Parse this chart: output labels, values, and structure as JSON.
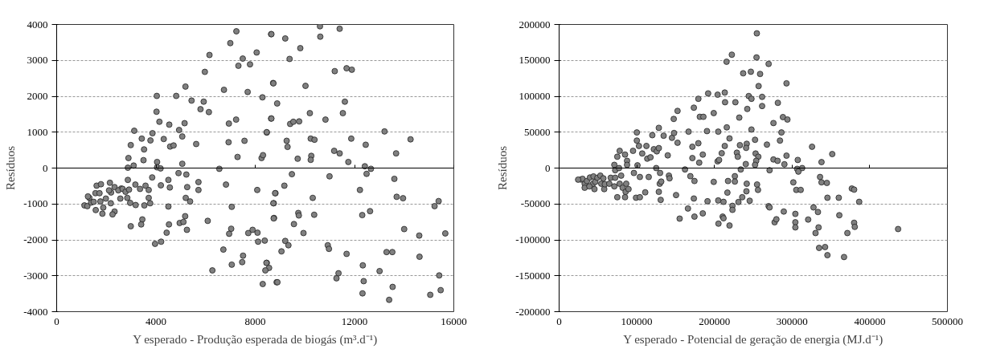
{
  "chart_data": [
    {
      "type": "scatter",
      "xlabel": "Y esperado - Produção esperada de biogás (m³.d⁻¹)",
      "ylabel": "Resíduos",
      "xlim": [
        0,
        16000
      ],
      "ylim": [
        -4000,
        4000
      ],
      "xticks": [
        0,
        4000,
        8000,
        12000,
        16000
      ],
      "yticks": [
        -4000,
        -3000,
        -2000,
        -1000,
        0,
        1000,
        2000,
        3000,
        4000
      ],
      "grid": "y",
      "marker": "circle",
      "series": [
        {
          "color": "#808080",
          "x": [
            7240,
            6995,
            6156,
            7497,
            7322,
            7789,
            8057,
            8640,
            5970,
            5189,
            6740,
            7695,
            8722,
            4034,
            4815,
            5434,
            5923,
            5795,
            6133,
            8290,
            4023,
            4139,
            4536,
            5154,
            4932,
            5060,
            6938,
            7229,
            8640,
            3125,
            3428,
            3778,
            3860,
            4314,
            2985,
            3521,
            4571,
            4711,
            5620,
            8465,
            6926,
            7567,
            2892,
            3101,
            3498,
            4046,
            2868,
            4046,
            4186,
            5060,
            7287,
            8255,
            8313,
            6553,
            4909,
            5224,
            3848,
            2868,
            3171,
            3358,
            3580,
            3708,
            4501,
            4559,
            4198,
            5713,
            5713,
            6821,
            8080,
            8815,
            5259,
            5200,
            5375,
            2600,
            2192,
            2565,
            2845,
            3183,
            3533,
            3766,
            3708,
            2962,
            4501,
            7054,
            8745,
            6086,
            8757,
            3451,
            3405,
            2985,
            4524,
            4955,
            5107,
            5177,
            5247,
            4431,
            4209,
            3964,
            7031,
            6949,
            7719,
            7894,
            8092,
            8115,
            8383,
            6716,
            7509,
            7474,
            7054,
            6273,
            8465,
            8558,
            8407,
            8302,
            8862,
            1120,
            1236,
            1318,
            1388,
            1562,
            1609,
            1784,
            1574,
            1842,
            1761,
            1982,
            1877,
            2180,
            2332,
            2250,
            2145,
            2110,
            2332,
            2484,
            2658,
            2775,
            2915,
            1260,
            1492,
            1726,
            8650,
            9209,
            10608,
            10620,
            11401,
            9815,
            9384,
            11203,
            11681,
            11891,
            8731,
            10025,
            8883,
            11611,
            8650,
            9407,
            9536,
            9769,
            10200,
            10830,
            11530,
            8463,
            9267,
            9302,
            10235,
            10387,
            11868,
            13209,
            14258,
            12451,
            13675,
            11180,
            11401,
            9710,
            10258,
            10235,
            11751,
            12416,
            12661,
            12486,
            9477,
            9174,
            8801,
            8731,
            10993,
            12218,
            13605,
            10317,
            13698,
            13955,
            9734,
            9757,
            10375,
            8743,
            9559,
            9944,
            12311,
            12626,
            15226,
            15389,
            14001,
            14608,
            15657,
            9209,
            9337,
            9057,
            10923,
            10970,
            11681,
            13290,
            13523,
            14619,
            12334,
            13010,
            11355,
            11273,
            12369,
            12322,
            13395,
            13535,
            8894,
            8451,
            15051,
            15471,
            15412
          ],
          "values": [
            3810,
            3480,
            3150,
            3050,
            2850,
            2890,
            3220,
            3730,
            2680,
            2270,
            2180,
            2120,
            2370,
            2010,
            2010,
            1880,
            1850,
            1640,
            1560,
            1970,
            1570,
            1290,
            1210,
            1250,
            1060,
            880,
            1240,
            1350,
            1380,
            1040,
            820,
            770,
            970,
            810,
            640,
            520,
            600,
            630,
            670,
            990,
            720,
            760,
            280,
            70,
            220,
            170,
            10,
            20,
            -10,
            120,
            310,
            280,
            360,
            -20,
            -140,
            -180,
            -260,
            -330,
            -460,
            -580,
            -490,
            -610,
            -330,
            -540,
            -480,
            -390,
            -610,
            -460,
            -610,
            -700,
            -530,
            -830,
            -930,
            -570,
            -680,
            -850,
            -830,
            -1030,
            -1040,
            -980,
            -830,
            -970,
            -1070,
            -1080,
            -980,
            -1470,
            -1390,
            -1430,
            -1570,
            -1620,
            -1570,
            -1530,
            -1500,
            -1340,
            -1720,
            -1800,
            -2050,
            -2110,
            -1690,
            -1830,
            -1810,
            -1720,
            -1800,
            -2050,
            -2020,
            -2270,
            -2440,
            -2620,
            -2690,
            -2850,
            -2640,
            -2780,
            -2850,
            -3230,
            -3180,
            -1040,
            -1060,
            -830,
            -960,
            -700,
            -490,
            -450,
            -1170,
            -1270,
            -930,
            -850,
            -1100,
            -980,
            -1210,
            -1290,
            -410,
            -620,
            -530,
            -620,
            -580,
            -660,
            -600,
            -790,
            -940,
            -700,
            3730,
            3610,
            3950,
            3660,
            3880,
            3340,
            3040,
            2700,
            2780,
            2740,
            2360,
            2290,
            1800,
            1850,
            1380,
            1230,
            1290,
            1300,
            1530,
            1350,
            1530,
            1000,
            760,
            590,
            820,
            790,
            820,
            1020,
            800,
            650,
            410,
            480,
            410,
            260,
            340,
            230,
            170,
            50,
            -20,
            -160,
            -170,
            -490,
            -700,
            -980,
            -230,
            -610,
            -300,
            -830,
            -800,
            -840,
            -1250,
            -1320,
            -1300,
            -1400,
            -1560,
            -1810,
            -1310,
            -1200,
            -1060,
            -920,
            -1700,
            -1880,
            -1820,
            -2030,
            -2150,
            -2320,
            -2150,
            -2250,
            -2390,
            -2340,
            -2340,
            -2470,
            -2710,
            -2870,
            -2930,
            -3070,
            -3150,
            -3490,
            -3670,
            -3310,
            -3180,
            -2640,
            -3530,
            -3400,
            -2990
          ]
        }
      ]
    },
    {
      "type": "scatter",
      "xlabel": "Y esperado - Potencial de geração de energia (MJ.d⁻¹)",
      "ylabel": "Resíduos",
      "xlim": [
        0,
        500000
      ],
      "ylim": [
        -200000,
        200000
      ],
      "xticks": [
        0,
        100000,
        200000,
        300000,
        400000,
        500000
      ],
      "yticks": [
        -200000,
        -150000,
        -100000,
        -50000,
        0,
        50000,
        100000,
        150000,
        200000
      ],
      "grid": "y",
      "marker": "circle",
      "series": [
        {
          "color": "#808080",
          "x": [
            28300,
            30200,
            32900,
            35900,
            39700,
            44300,
            43600,
            46600,
            45500,
            49300,
            53100,
            54300,
            57000,
            58100,
            58900,
            64600,
            66500,
            71100,
            72200,
            74900,
            78000,
            79900,
            81800,
            84900,
            85600,
            86400,
            89400,
            32900,
            39000,
            24500,
            71100,
            72200,
            74900,
            77200,
            78000,
            84900,
            87500,
            87500,
            95200,
            96300,
            100100,
            100100,
            100900,
            102800,
            104000,
            99000,
            104000,
            107000,
            110900,
            112400,
            113500,
            115400,
            117700,
            120000,
            122000,
            125000,
            125800,
            128400,
            128400,
            130000,
            129600,
            130800,
            131500,
            134600,
            128400,
            139900,
            141400,
            142200,
            145300,
            147600,
            148000,
            150600,
            152500,
            152500,
            155200,
            162100,
            166700,
            165900,
            169000,
            171600,
            171600,
            173500,
            174300,
            173500,
            174300,
            179300,
            179300,
            181200,
            180400,
            185000,
            185000,
            185800,
            191900,
            190400,
            191100,
            254600,
            222400,
            215600,
            254200,
            269800,
            237000,
            246900,
            258800,
            256900,
            292800,
            213300,
            204100,
            244200,
            247700,
            261400,
            261400,
            213700,
            227000,
            281700,
            242300,
            199100,
            232000,
            288200,
            294000,
            276000,
            247700,
            286300,
            204900,
            215900,
            219400,
            252300,
            284400,
            267600,
            232800,
            241600,
            240800,
            213300,
            325700,
            209400,
            228900,
            230100,
            253000,
            256500,
            253800,
            252300,
            240400,
            204100,
            206000,
            276000,
            281300,
            292800,
            290100,
            307300,
            337900,
            351700,
            233900,
            271000,
            306500,
            313000,
            308100,
            226300,
            199100,
            217500,
            216700,
            241200,
            241600,
            254900,
            256100,
            301600,
            305400,
            311100,
            336000,
            337900,
            344800,
            345500,
            360100,
            376900,
            379900,
            386400,
            235800,
            230900,
            223200,
            245400,
            204900,
            211700,
            269800,
            271000,
            289300,
            304200,
            327600,
            333300,
            360800,
            379900,
            380700,
            223200,
            205200,
            219400,
            210600,
            211700,
            277500,
            279800,
            304200,
            304200,
            320700,
            334100,
            330200,
            371200,
            436500,
            334800,
            342500,
            345500,
            366900,
            226300
          ],
          "values": [
            -16000,
            -15000,
            -21800,
            -18000,
            -13100,
            -11600,
            -21800,
            -19200,
            -29300,
            -13500,
            -10500,
            -21800,
            -14300,
            -29300,
            -22500,
            -21800,
            -13500,
            -25500,
            -13500,
            -40600,
            -21800,
            -10500,
            -27400,
            -40600,
            -33100,
            -21800,
            -29300,
            -27400,
            -25500,
            -16100,
            4500,
            -3000,
            15800,
            0,
            24000,
            18800,
            10100,
            4500,
            24000,
            -6800,
            49600,
            38300,
            3800,
            30800,
            -12400,
            -41300,
            -40600,
            20300,
            -33800,
            30800,
            13100,
            -12400,
            15000,
            45800,
            26300,
            0,
            23300,
            27800,
            56000,
            -6800,
            -21800,
            -44300,
            -18800,
            45100,
            -33100,
            17700,
            -10500,
            -14300,
            42100,
            68400,
            48800,
            -37600,
            79600,
            35300,
            -70400,
            -1900,
            50700,
            -56300,
            -11300,
            29700,
            13900,
            84100,
            -18000,
            -42400,
            -67600,
            96500,
            34600,
            71400,
            7500,
            18800,
            -63100,
            71400,
            104000,
            51500,
            -46200,
            187600,
            157900,
            148100,
            154100,
            145100,
            132000,
            134200,
            131100,
            114200,
            118000,
            105200,
            102200,
            100300,
            96500,
            99200,
            86400,
            91700,
            91700,
            90900,
            82300,
            76600,
            70300,
            71000,
            67600,
            62700,
            53700,
            49600,
            50700,
            56700,
            41300,
            39400,
            38300,
            32700,
            31900,
            33800,
            28100,
            30800,
            29700,
            20700,
            21400,
            15800,
            20300,
            15800,
            10100,
            4500,
            5600,
            9400,
            11300,
            12000,
            10100,
            17300,
            5300,
            11300,
            8300,
            19500,
            -1900,
            -3000,
            -1100,
            0,
            -4900,
            -11300,
            -19200,
            -18000,
            -34200,
            -32300,
            -21800,
            -22900,
            -30400,
            -19900,
            -30400,
            -30400,
            -12400,
            -19900,
            -20700,
            -41300,
            -41300,
            -28500,
            -30000,
            -47000,
            -40600,
            -47300,
            -52600,
            -45500,
            -45100,
            -47000,
            -53000,
            -54800,
            -60500,
            -63800,
            -54800,
            -61200,
            -65700,
            -76200,
            -81900,
            -58200,
            -77400,
            -80000,
            -67600,
            -69900,
            -75500,
            -71300,
            -75500,
            -82600,
            -71700,
            -82600,
            -90500,
            -90500,
            -84900,
            -111200,
            -110000,
            -121300,
            -123900,
            -18800
          ]
        }
      ]
    }
  ]
}
